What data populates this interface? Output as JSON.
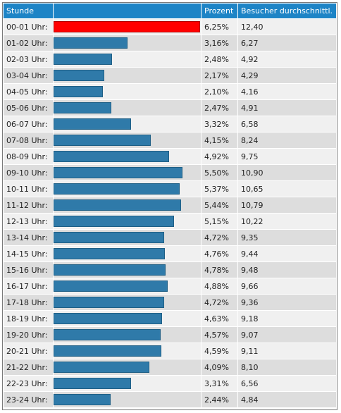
{
  "header": {
    "col_hour": "Stunde",
    "col_bar": "",
    "col_percent": "Prozent",
    "col_avg": "Besucher durchschnittl."
  },
  "colors": {
    "bar": "#2f7aa9",
    "bar_max": "#ff0000",
    "header": "#1d84c6"
  },
  "rows": [
    {
      "hour": "00-01 Uhr:",
      "percent": "6,25%",
      "avg": "12,40",
      "value": 6.25,
      "max": true
    },
    {
      "hour": "01-02 Uhr:",
      "percent": "3,16%",
      "avg": "6,27",
      "value": 3.16
    },
    {
      "hour": "02-03 Uhr:",
      "percent": "2,48%",
      "avg": "4,92",
      "value": 2.48
    },
    {
      "hour": "03-04 Uhr:",
      "percent": "2,17%",
      "avg": "4,29",
      "value": 2.17
    },
    {
      "hour": "04-05 Uhr:",
      "percent": "2,10%",
      "avg": "4,16",
      "value": 2.1
    },
    {
      "hour": "05-06 Uhr:",
      "percent": "2,47%",
      "avg": "4,91",
      "value": 2.47
    },
    {
      "hour": "06-07 Uhr:",
      "percent": "3,32%",
      "avg": "6,58",
      "value": 3.32
    },
    {
      "hour": "07-08 Uhr:",
      "percent": "4,15%",
      "avg": "8,24",
      "value": 4.15
    },
    {
      "hour": "08-09 Uhr:",
      "percent": "4,92%",
      "avg": "9,75",
      "value": 4.92
    },
    {
      "hour": "09-10 Uhr:",
      "percent": "5,50%",
      "avg": "10,90",
      "value": 5.5
    },
    {
      "hour": "10-11 Uhr:",
      "percent": "5,37%",
      "avg": "10,65",
      "value": 5.37
    },
    {
      "hour": "11-12 Uhr:",
      "percent": "5,44%",
      "avg": "10,79",
      "value": 5.44
    },
    {
      "hour": "12-13 Uhr:",
      "percent": "5,15%",
      "avg": "10,22",
      "value": 5.15
    },
    {
      "hour": "13-14 Uhr:",
      "percent": "4,72%",
      "avg": "9,35",
      "value": 4.72
    },
    {
      "hour": "14-15 Uhr:",
      "percent": "4,76%",
      "avg": "9,44",
      "value": 4.76
    },
    {
      "hour": "15-16 Uhr:",
      "percent": "4,78%",
      "avg": "9,48",
      "value": 4.78
    },
    {
      "hour": "16-17 Uhr:",
      "percent": "4,88%",
      "avg": "9,66",
      "value": 4.88
    },
    {
      "hour": "17-18 Uhr:",
      "percent": "4,72%",
      "avg": "9,36",
      "value": 4.72
    },
    {
      "hour": "18-19 Uhr:",
      "percent": "4,63%",
      "avg": "9,18",
      "value": 4.63
    },
    {
      "hour": "19-20 Uhr:",
      "percent": "4,57%",
      "avg": "9,07",
      "value": 4.57
    },
    {
      "hour": "20-21 Uhr:",
      "percent": "4,59%",
      "avg": "9,11",
      "value": 4.59
    },
    {
      "hour": "21-22 Uhr:",
      "percent": "4,09%",
      "avg": "8,10",
      "value": 4.09
    },
    {
      "hour": "22-23 Uhr:",
      "percent": "3,31%",
      "avg": "6,56",
      "value": 3.31
    },
    {
      "hour": "23-24 Uhr:",
      "percent": "2,44%",
      "avg": "4,84",
      "value": 2.44
    }
  ]
}
